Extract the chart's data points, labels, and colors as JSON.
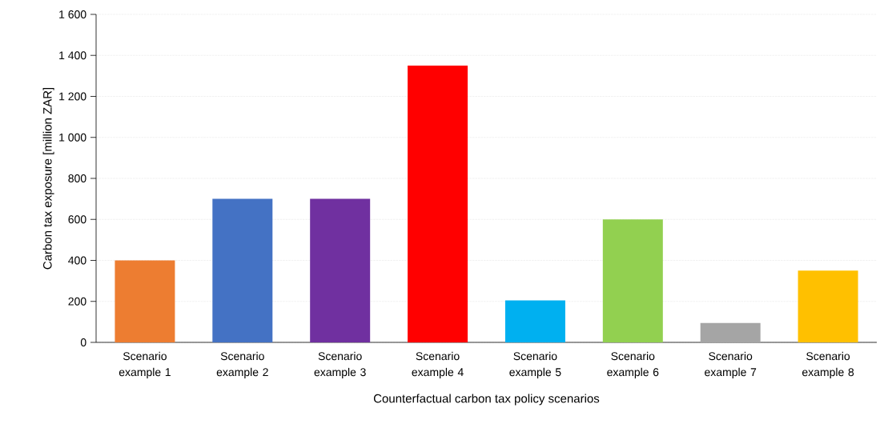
{
  "chart_data": {
    "type": "bar",
    "xlabel": "Counterfactual carbon tax policy scenarios",
    "ylabel": "Carbon tax exposure [million ZAR]",
    "categories": [
      "Scenario example 1",
      "Scenario example 2",
      "Scenario example 3",
      "Scenario example 4",
      "Scenario example 5",
      "Scenario example 6",
      "Scenario example 7",
      "Scenario example 8"
    ],
    "values": [
      400,
      700,
      700,
      1350,
      205,
      600,
      95,
      350
    ],
    "colors": [
      "#ed7d31",
      "#4472c4",
      "#7030a0",
      "#ff0000",
      "#00b0f0",
      "#92d050",
      "#a5a5a5",
      "#ffc000"
    ],
    "ylim": [
      0,
      1600
    ],
    "yticks": [
      0,
      200,
      400,
      600,
      800,
      {
        "value": 1000,
        "label": "1 000"
      },
      {
        "value": 1200,
        "label": "1 200"
      },
      {
        "value": 1400,
        "label": "1 400"
      },
      {
        "value": 1600,
        "label": "1 600"
      }
    ],
    "grid": "y"
  }
}
